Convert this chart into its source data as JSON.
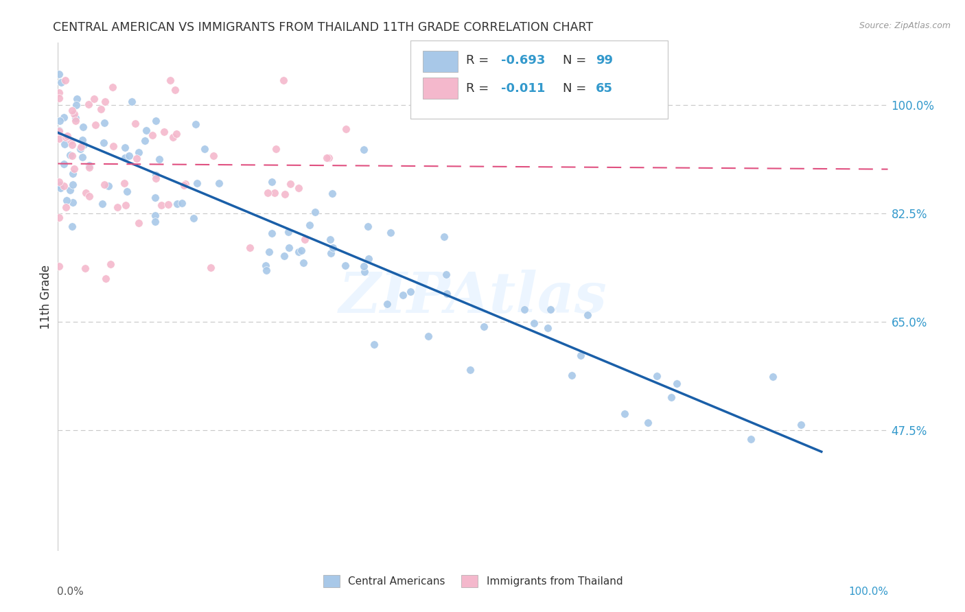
{
  "title": "CENTRAL AMERICAN VS IMMIGRANTS FROM THAILAND 11TH GRADE CORRELATION CHART",
  "source": "Source: ZipAtlas.com",
  "ylabel": "11th Grade",
  "watermark": "ZIPAtlas",
  "legend_label_blue": "Central Americans",
  "legend_label_pink": "Immigrants from Thailand",
  "ytick_labels": [
    "100.0%",
    "82.5%",
    "65.0%",
    "47.5%"
  ],
  "ytick_values": [
    1.0,
    0.825,
    0.65,
    0.475
  ],
  "blue_color": "#a8c8e8",
  "pink_color": "#f4b8cc",
  "blue_line_color": "#1a5fa8",
  "pink_line_color": "#e05080",
  "background_color": "#ffffff",
  "grid_color": "#c8c8c8",
  "xlim": [
    0.0,
    1.0
  ],
  "ylim": [
    0.28,
    1.1
  ],
  "blue_line_x0": 0.0,
  "blue_line_x1": 0.92,
  "blue_line_y0": 0.955,
  "blue_line_y1": 0.44,
  "pink_line_x0": 0.0,
  "pink_line_x1": 1.0,
  "pink_line_y0": 0.905,
  "pink_line_y1": 0.896
}
